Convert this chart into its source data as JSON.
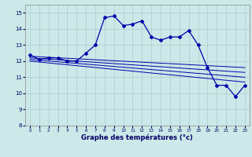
{
  "xlabel": "Graphe des températures (°c)",
  "background_color": "#cce8e8",
  "grid_color": "#aacccc",
  "line_color": "#0000aa",
  "xlim": [
    -0.5,
    23.5
  ],
  "ylim": [
    8,
    15.5
  ],
  "yticks": [
    8,
    9,
    10,
    11,
    12,
    13,
    14,
    15
  ],
  "xticks": [
    0,
    1,
    2,
    3,
    4,
    5,
    6,
    7,
    8,
    9,
    10,
    11,
    12,
    13,
    14,
    15,
    16,
    17,
    18,
    19,
    20,
    21,
    22,
    23
  ],
  "series1_x": [
    0,
    1,
    2,
    3,
    4,
    5,
    6,
    7,
    8,
    9,
    10,
    11,
    12,
    13,
    14,
    15,
    16,
    17,
    18,
    19,
    20,
    21,
    22,
    23
  ],
  "series1_y": [
    12.4,
    12.1,
    12.2,
    12.2,
    12.0,
    12.0,
    12.5,
    13.0,
    14.7,
    14.8,
    14.2,
    14.3,
    14.5,
    13.5,
    13.3,
    13.5,
    13.5,
    13.9,
    13.0,
    11.6,
    10.5,
    10.5,
    9.8,
    10.5
  ],
  "series2_x": [
    0,
    23
  ],
  "series2_y": [
    12.3,
    11.6
  ],
  "series3_x": [
    0,
    23
  ],
  "series3_y": [
    12.2,
    11.3
  ],
  "series4_x": [
    0,
    23
  ],
  "series4_y": [
    12.1,
    11.0
  ],
  "series5_x": [
    0,
    23
  ],
  "series5_y": [
    12.0,
    10.7
  ]
}
